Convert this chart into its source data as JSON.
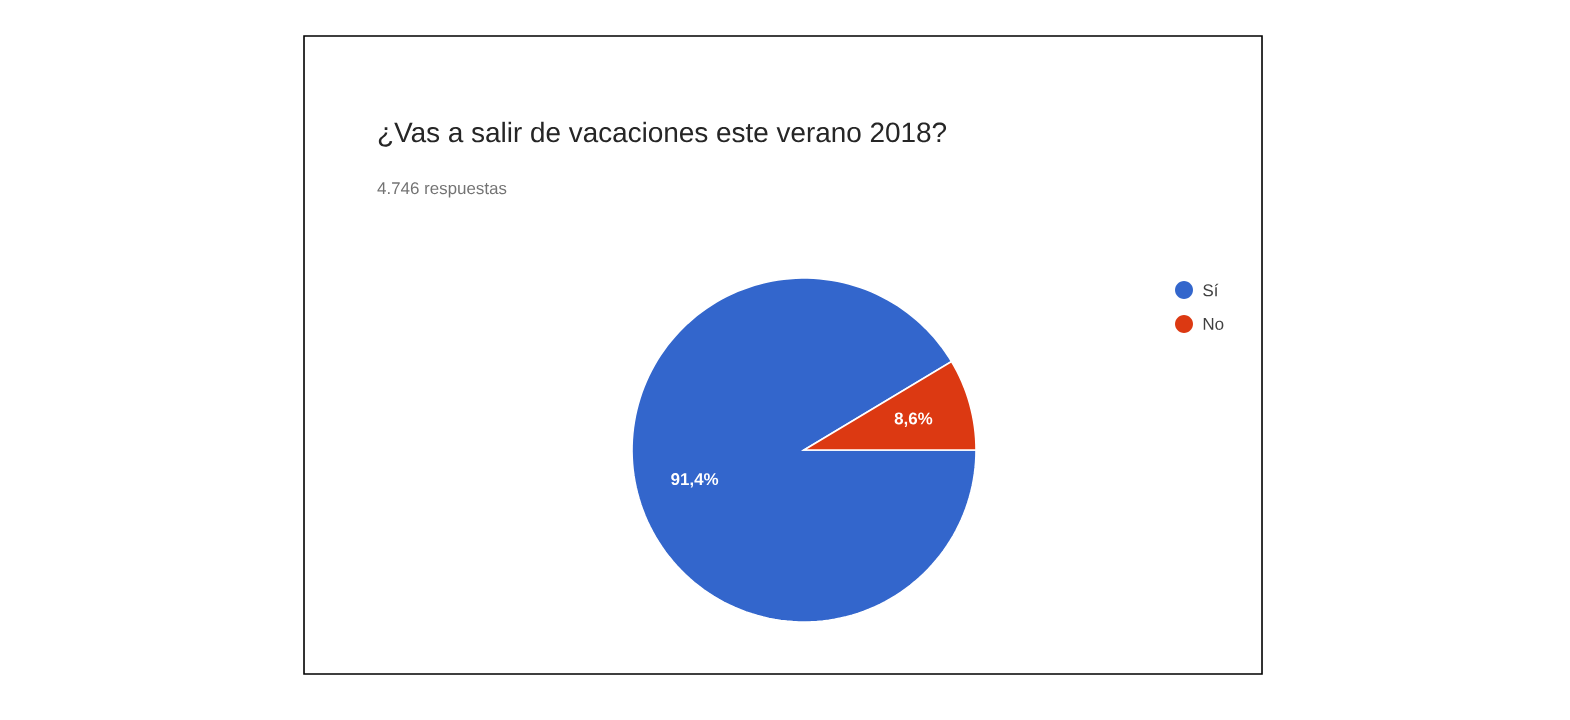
{
  "chart_data": {
    "type": "pie",
    "title": "¿Vas a salir de vacaciones este verano 2018?",
    "subtitle": "4.746 respuestas",
    "categories": [
      "Sí",
      "No"
    ],
    "values": [
      91.4,
      8.6
    ],
    "colors": [
      "#3366cc",
      "#dc3912"
    ],
    "value_labels": [
      "91,4%",
      "8,6%"
    ],
    "legend": "top right"
  }
}
